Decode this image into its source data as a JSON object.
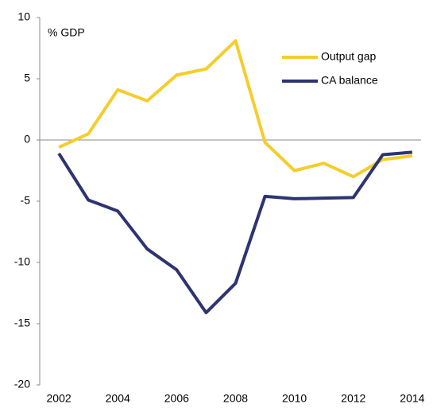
{
  "chart_data": {
    "type": "line",
    "y_label": "% GDP",
    "x": [
      2002,
      2003,
      2004,
      2005,
      2006,
      2007,
      2008,
      2009,
      2010,
      2011,
      2012,
      2013,
      2014
    ],
    "series": [
      {
        "name": "Output gap",
        "color": "#f5cd2c",
        "values": [
          -0.6,
          0.5,
          4.1,
          3.2,
          5.3,
          5.8,
          8.1,
          -0.2,
          -2.5,
          -1.9,
          -3.0,
          -1.6,
          -1.3
        ]
      },
      {
        "name": "CA balance",
        "color": "#2d3470",
        "values": [
          -1.1,
          -4.9,
          -5.8,
          -8.9,
          -10.6,
          -14.1,
          -11.7,
          -4.6,
          -4.8,
          -4.75,
          -4.7,
          -1.2,
          -1.0
        ]
      }
    ],
    "xlim": [
      2001.35,
      2014.3
    ],
    "xticks": [
      2002,
      2004,
      2006,
      2008,
      2010,
      2012,
      2014
    ],
    "ylim": [
      -20,
      10
    ],
    "yticks": [
      -20,
      -15,
      -10,
      -5,
      0,
      5,
      10
    ],
    "legend": "top-right"
  }
}
